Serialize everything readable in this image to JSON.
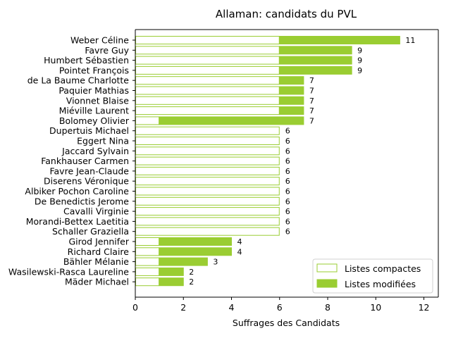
{
  "chart_data": {
    "type": "bar",
    "orientation": "horizontal",
    "stacked": true,
    "title": "Allaman: candidats du PVL",
    "xlabel": "Suffrages des Candidats",
    "ylabel": "",
    "xlim": [
      0,
      12.6
    ],
    "xticks": [
      0,
      2,
      4,
      6,
      8,
      10,
      12
    ],
    "grid": false,
    "legend_position": "lower-right",
    "colors": {
      "accent": "#9acd32"
    },
    "categories": [
      "Weber Céline",
      "Favre Guy",
      "Humbert Sébastien",
      "Pointet François",
      "de La Baume Charlotte",
      "Paquier Mathias",
      "Vionnet Blaise",
      "Miéville Laurent",
      "Bolomey Olivier",
      "Dupertuis Michael",
      "Eggert Nina",
      "Jaccard Sylvain",
      "Fankhauser Carmen",
      "Favre Jean-Claude",
      "Diserens Véronique",
      "Albiker Pochon Caroline",
      "De Benedictis Jerome",
      "Cavalli Virginie",
      "Morandi-Bettex Laetitia",
      "Schaller Graziella",
      "Girod Jennifer",
      "Richard Claire",
      "Bähler Mélanie",
      "Wasilewski-Rasca Laureline",
      "Mäder Michael"
    ],
    "series": [
      {
        "name": "Listes compactes",
        "style": "outline",
        "values": [
          6,
          6,
          6,
          6,
          6,
          6,
          6,
          6,
          1,
          6,
          6,
          6,
          6,
          6,
          6,
          6,
          6,
          6,
          6,
          6,
          1,
          1,
          1,
          1,
          1
        ]
      },
      {
        "name": "Listes modifiées",
        "style": "filled",
        "values": [
          5,
          3,
          3,
          3,
          1,
          1,
          1,
          1,
          6,
          0,
          0,
          0,
          0,
          0,
          0,
          0,
          0,
          0,
          0,
          0,
          3,
          3,
          2,
          1,
          1
        ]
      }
    ],
    "totals": [
      "11",
      "9",
      "9",
      "9",
      "7",
      "7",
      "7",
      "7",
      "7",
      "6",
      "6",
      "6",
      "6",
      "6",
      "6",
      "6",
      "6",
      "6",
      "6",
      "6",
      "4",
      "4",
      "3",
      "2",
      "2"
    ]
  }
}
